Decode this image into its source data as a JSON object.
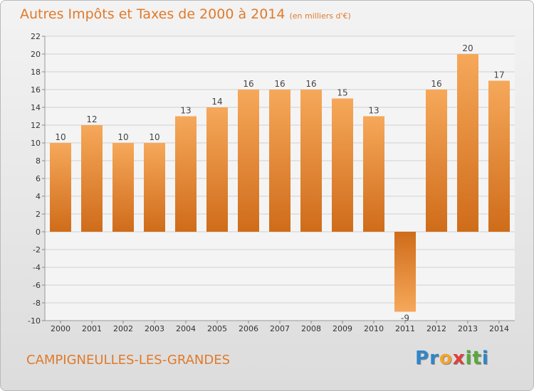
{
  "header": {
    "title": "Autres Impôts et Taxes de 2000 à 2014",
    "unit": "(en milliers d'€)"
  },
  "footer": {
    "city": "CAMPIGNEULLES-LES-GRANDES",
    "brand": "Proxiti",
    "brand_letters": [
      {
        "ch": "P",
        "color": "#2f86c8"
      },
      {
        "ch": "r",
        "color": "#2f86c8"
      },
      {
        "ch": "o",
        "color": "#f2a431"
      },
      {
        "ch": "x",
        "color": "#e0403a"
      },
      {
        "ch": "i",
        "color": "#5aa83c"
      },
      {
        "ch": "t",
        "color": "#5aa83c"
      },
      {
        "ch": "i",
        "color": "#2f86c8"
      }
    ]
  },
  "colors": {
    "title": "#e07a2a",
    "bar_light": "#f6a85a",
    "bar_dark": "#cf6c1a",
    "grid": "#cfcfcf"
  },
  "chart_data": {
    "type": "bar",
    "title": "Autres Impôts et Taxes de 2000 à 2014",
    "subtitle": "(en milliers d'€)",
    "categories": [
      "2000",
      "2001",
      "2002",
      "2003",
      "2004",
      "2005",
      "2006",
      "2007",
      "2008",
      "2009",
      "2010",
      "2011",
      "2012",
      "2013",
      "2014"
    ],
    "values": [
      10,
      12,
      10,
      10,
      13,
      14,
      16,
      16,
      16,
      15,
      13,
      -9,
      16,
      20,
      17
    ],
    "ylim": [
      -10,
      22
    ],
    "yticks": [
      22,
      20,
      18,
      16,
      14,
      12,
      10,
      8,
      6,
      4,
      2,
      0,
      -2,
      -4,
      -6,
      -8,
      -10
    ],
    "grid": "horizontal",
    "legend": "none"
  }
}
